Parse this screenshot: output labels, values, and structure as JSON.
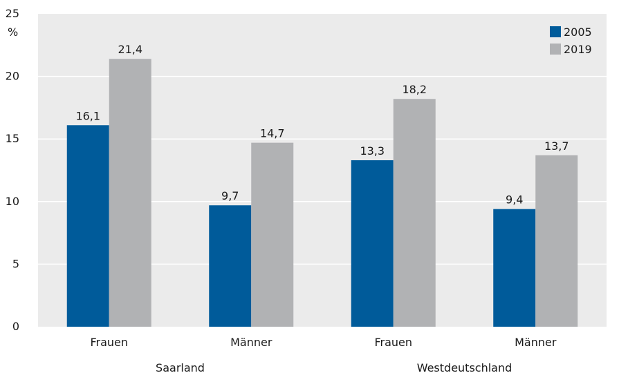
{
  "chart_data": {
    "type": "bar",
    "ylabel": "%",
    "ylim": [
      0,
      25
    ],
    "yticks": [
      0,
      5,
      10,
      15,
      20,
      25
    ],
    "grid": true,
    "legend_position": "top-right",
    "categories": [
      "Frauen",
      "Männer",
      "Frauen",
      "Männer"
    ],
    "groups": [
      {
        "label": "Saarland",
        "categories": [
          0,
          1
        ]
      },
      {
        "label": "Westdeutschland",
        "categories": [
          2,
          3
        ]
      }
    ],
    "series": [
      {
        "name": "2005",
        "color": "#005b9a",
        "values": [
          16.1,
          9.7,
          13.3,
          9.4
        ],
        "labels": [
          "16,1",
          "9,7",
          "13,3",
          "9,4"
        ]
      },
      {
        "name": "2019",
        "color": "#b1b2b4",
        "values": [
          21.4,
          14.7,
          18.2,
          13.7
        ],
        "labels": [
          "21,4",
          "14,7",
          "18,2",
          "13,7"
        ]
      }
    ]
  },
  "style": {
    "plot_background": "#ebebeb",
    "gridline_color": "#ffffff"
  }
}
